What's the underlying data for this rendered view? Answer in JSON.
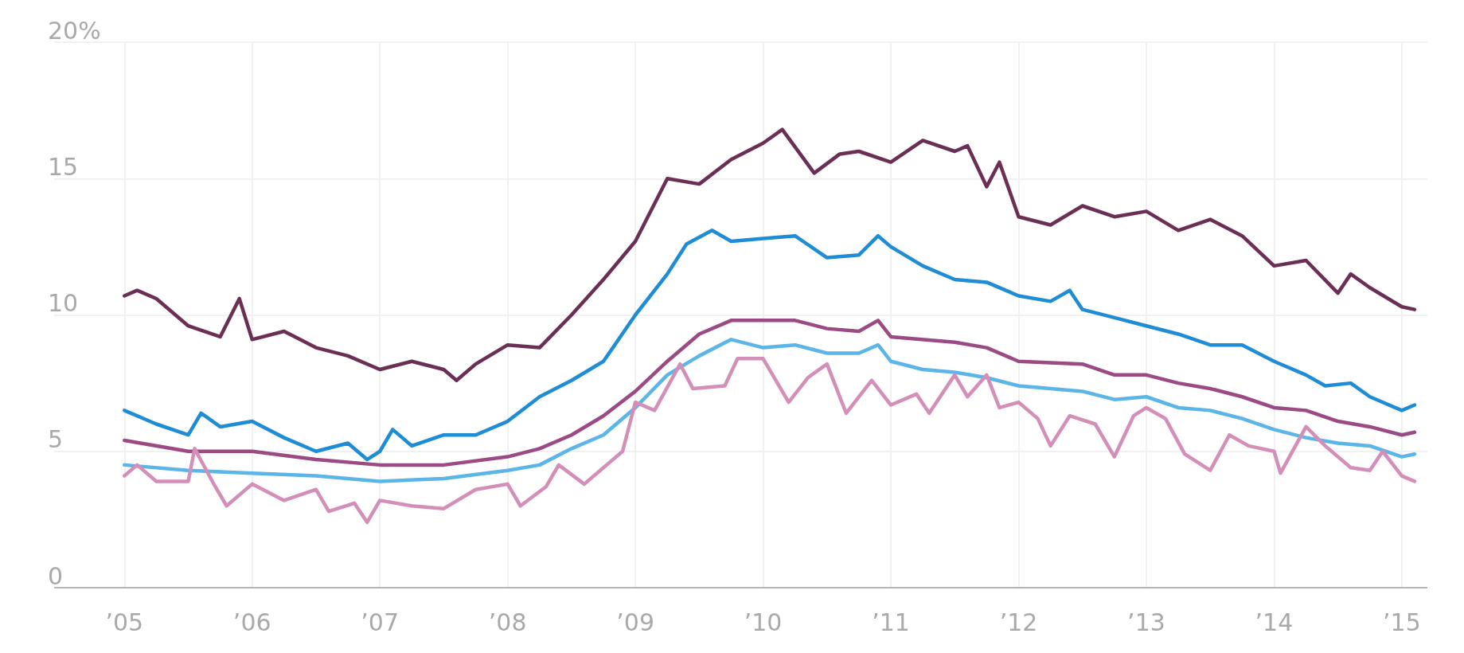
{
  "chart_data": {
    "type": "line",
    "xlim": [
      2004.45,
      2015.2
    ],
    "ylim": [
      0,
      20
    ],
    "xticks": [
      {
        "value": 2005,
        "label": "’05"
      },
      {
        "value": 2006,
        "label": "’06"
      },
      {
        "value": 2007,
        "label": "’07"
      },
      {
        "value": 2008,
        "label": "’08"
      },
      {
        "value": 2009,
        "label": "’09"
      },
      {
        "value": 2010,
        "label": "’10"
      },
      {
        "value": 2011,
        "label": "’11"
      },
      {
        "value": 2012,
        "label": "’12"
      },
      {
        "value": 2013,
        "label": "’13"
      },
      {
        "value": 2014,
        "label": "’14"
      },
      {
        "value": 2015,
        "label": "’15"
      }
    ],
    "yticks": [
      0,
      5,
      10,
      15,
      {
        "value": 20,
        "label": "20%"
      }
    ],
    "grid": true,
    "marker": "none",
    "line_style": "solid",
    "series": [
      {
        "color": "#6b2f55",
        "x": [
          2005,
          2005.1,
          2005.25,
          2005.5,
          2005.75,
          2005.9,
          2006,
          2006.25,
          2006.5,
          2006.75,
          2007,
          2007.25,
          2007.5,
          2007.6,
          2007.75,
          2008,
          2008.25,
          2008.5,
          2008.75,
          2009,
          2009.25,
          2009.5,
          2009.75,
          2010,
          2010.15,
          2010.4,
          2010.6,
          2010.75,
          2011,
          2011.25,
          2011.5,
          2011.6,
          2011.75,
          2011.85,
          2012,
          2012.25,
          2012.5,
          2012.75,
          2013,
          2013.25,
          2013.5,
          2013.75,
          2014,
          2014.25,
          2014.5,
          2014.6,
          2014.75,
          2015,
          2015.1
        ],
        "values": [
          10.7,
          10.9,
          10.6,
          9.6,
          9.2,
          10.6,
          9.1,
          9.4,
          8.8,
          8.5,
          8.0,
          8.3,
          8.0,
          7.6,
          8.2,
          8.9,
          8.8,
          10.0,
          11.3,
          12.7,
          15.0,
          14.8,
          15.7,
          16.3,
          16.8,
          15.2,
          15.9,
          16.0,
          15.6,
          16.4,
          16.0,
          16.2,
          14.7,
          15.6,
          13.6,
          13.3,
          14.0,
          13.6,
          13.8,
          13.1,
          13.5,
          12.9,
          11.8,
          12.0,
          10.8,
          11.5,
          11.0,
          10.3,
          10.2
        ]
      },
      {
        "color": "#1f8dd6",
        "x": [
          2005,
          2005.25,
          2005.5,
          2005.6,
          2005.75,
          2006,
          2006.25,
          2006.5,
          2006.75,
          2006.9,
          2007,
          2007.1,
          2007.25,
          2007.5,
          2007.75,
          2008,
          2008.25,
          2008.5,
          2008.75,
          2009,
          2009.25,
          2009.4,
          2009.6,
          2009.75,
          2010,
          2010.25,
          2010.5,
          2010.75,
          2010.9,
          2011,
          2011.25,
          2011.5,
          2011.75,
          2012,
          2012.25,
          2012.4,
          2012.5,
          2012.75,
          2013,
          2013.25,
          2013.5,
          2013.75,
          2014,
          2014.25,
          2014.4,
          2014.6,
          2014.75,
          2015,
          2015.1
        ],
        "values": [
          6.5,
          6.0,
          5.6,
          6.4,
          5.9,
          6.1,
          5.5,
          5.0,
          5.3,
          4.7,
          5.0,
          5.8,
          5.2,
          5.6,
          5.6,
          6.1,
          7.0,
          7.6,
          8.3,
          10.0,
          11.5,
          12.6,
          13.1,
          12.7,
          12.8,
          12.9,
          12.1,
          12.2,
          12.9,
          12.5,
          11.8,
          11.3,
          11.2,
          10.7,
          10.5,
          10.9,
          10.2,
          9.9,
          9.6,
          9.3,
          8.9,
          8.9,
          8.3,
          7.8,
          7.4,
          7.5,
          7.0,
          6.5,
          6.7
        ]
      },
      {
        "color": "#9b4a84",
        "x": [
          2005,
          2005.5,
          2006,
          2006.5,
          2007,
          2007.5,
          2008,
          2008.25,
          2008.5,
          2008.75,
          2009,
          2009.25,
          2009.5,
          2009.75,
          2010,
          2010.25,
          2010.5,
          2010.75,
          2010.9,
          2011,
          2011.5,
          2011.75,
          2012,
          2012.5,
          2012.75,
          2013,
          2013.25,
          2013.5,
          2013.75,
          2014,
          2014.25,
          2014.5,
          2014.75,
          2015,
          2015.1
        ],
        "values": [
          5.4,
          5.0,
          5.0,
          4.7,
          4.5,
          4.5,
          4.8,
          5.1,
          5.6,
          6.3,
          7.2,
          8.3,
          9.3,
          9.8,
          9.8,
          9.8,
          9.5,
          9.4,
          9.8,
          9.2,
          9.0,
          8.8,
          8.3,
          8.2,
          7.8,
          7.8,
          7.5,
          7.3,
          7.0,
          6.6,
          6.5,
          6.1,
          5.9,
          5.6,
          5.7
        ]
      },
      {
        "color": "#5bb5e6",
        "x": [
          2005,
          2005.5,
          2006,
          2006.5,
          2007,
          2007.5,
          2008,
          2008.25,
          2008.5,
          2008.75,
          2009,
          2009.25,
          2009.5,
          2009.75,
          2010,
          2010.25,
          2010.5,
          2010.75,
          2010.9,
          2011,
          2011.25,
          2011.5,
          2011.75,
          2012,
          2012.5,
          2012.75,
          2013,
          2013.25,
          2013.5,
          2013.75,
          2014,
          2014.25,
          2014.5,
          2014.75,
          2015,
          2015.1
        ],
        "values": [
          4.5,
          4.3,
          4.2,
          4.1,
          3.9,
          4.0,
          4.3,
          4.5,
          5.1,
          5.6,
          6.6,
          7.8,
          8.5,
          9.1,
          8.8,
          8.9,
          8.6,
          8.6,
          8.9,
          8.3,
          8.0,
          7.9,
          7.7,
          7.4,
          7.2,
          6.9,
          7.0,
          6.6,
          6.5,
          6.2,
          5.8,
          5.5,
          5.3,
          5.2,
          4.8,
          4.9
        ]
      },
      {
        "color": "#d48fb8",
        "x": [
          2005,
          2005.1,
          2005.25,
          2005.5,
          2005.55,
          2005.7,
          2005.8,
          2006,
          2006.25,
          2006.5,
          2006.6,
          2006.8,
          2006.9,
          2007,
          2007.25,
          2007.5,
          2007.75,
          2008,
          2008.1,
          2008.3,
          2008.4,
          2008.6,
          2008.75,
          2008.9,
          2009,
          2009.15,
          2009.35,
          2009.45,
          2009.7,
          2009.8,
          2010,
          2010.2,
          2010.35,
          2010.5,
          2010.65,
          2010.85,
          2011,
          2011.2,
          2011.3,
          2011.5,
          2011.6,
          2011.75,
          2011.85,
          2012,
          2012.15,
          2012.25,
          2012.4,
          2012.6,
          2012.75,
          2012.9,
          2013,
          2013.15,
          2013.3,
          2013.5,
          2013.65,
          2013.8,
          2014,
          2014.05,
          2014.25,
          2014.4,
          2014.6,
          2014.75,
          2014.85,
          2015,
          2015.1
        ],
        "values": [
          4.1,
          4.5,
          3.9,
          3.9,
          5.1,
          3.8,
          3.0,
          3.8,
          3.2,
          3.6,
          2.8,
          3.1,
          2.4,
          3.2,
          3.0,
          2.9,
          3.6,
          3.8,
          3.0,
          3.7,
          4.5,
          3.8,
          4.4,
          5.0,
          6.8,
          6.5,
          8.2,
          7.3,
          7.4,
          8.4,
          8.4,
          6.8,
          7.7,
          8.2,
          6.4,
          7.6,
          6.7,
          7.1,
          6.4,
          7.8,
          7.0,
          7.8,
          6.6,
          6.8,
          6.2,
          5.2,
          6.3,
          6.0,
          4.8,
          6.3,
          6.6,
          6.2,
          4.9,
          4.3,
          5.6,
          5.2,
          5.0,
          4.2,
          5.9,
          5.2,
          4.4,
          4.3,
          5.0,
          4.1,
          3.9
        ]
      }
    ]
  }
}
